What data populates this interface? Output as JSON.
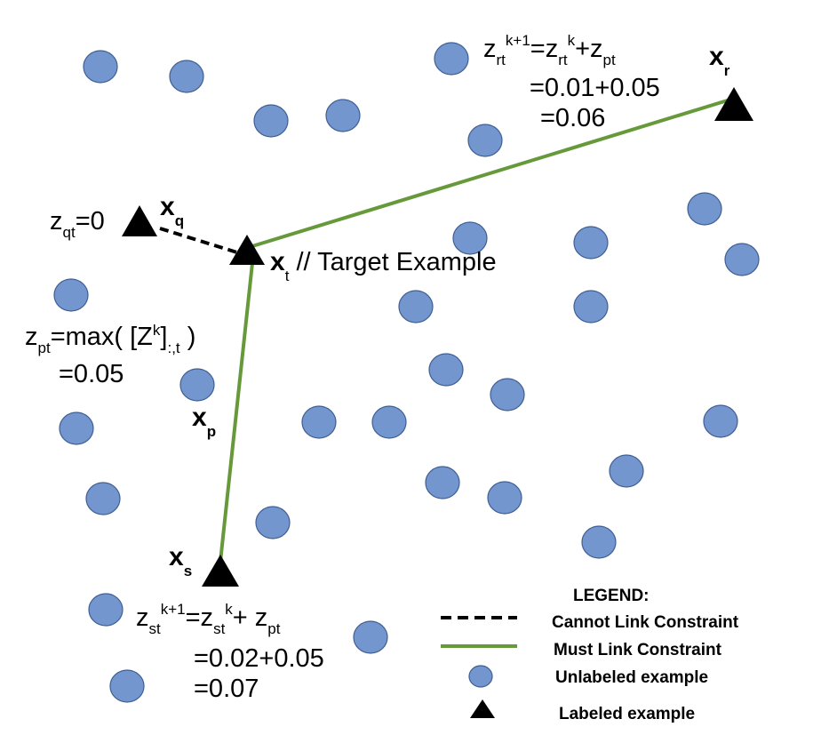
{
  "nodes": {
    "x_t": {
      "symbol": "x",
      "sub": "t",
      "suffix": " // Target Example"
    },
    "x_q": {
      "symbol": "x",
      "sub": "q"
    },
    "x_r": {
      "symbol": "x",
      "sub": "r"
    },
    "x_s": {
      "symbol": "x",
      "sub": "s"
    },
    "x_p": {
      "symbol": "x",
      "sub": "p"
    }
  },
  "equations": {
    "zqt": {
      "base": "z",
      "sub": "qt",
      "rest": "=0"
    },
    "zpt": {
      "line1": {
        "base": "z",
        "sub": "pt",
        "mid": "=max( [Z",
        "sup": "k",
        "close": "]",
        "sub2": ":,t",
        "end": " )"
      },
      "line2": "=0.05"
    },
    "zrt": {
      "line1": {
        "a": "z",
        "a_sub": "rt",
        "a_sup": "k+1",
        "eq": "=z",
        "b_sub": "rt",
        "b_sup": "k",
        "plus": "+z",
        "c_sub": "pt"
      },
      "line2": "=0.01+0.05",
      "line3": "=0.06"
    },
    "zst": {
      "line1": {
        "a": "z",
        "a_sub": "st",
        "a_sup": "k+1",
        "eq": "=z",
        "b_sub": "st",
        "b_sup": "k",
        "plus": "+ z",
        "c_sub": "pt"
      },
      "line2": "=0.02+0.05",
      "line3": "=0.07"
    }
  },
  "legend": {
    "title": "LEGEND:",
    "cannot_link": "Cannot Link Constraint",
    "must_link": "Must Link Constraint",
    "unlabeled": "Unlabeled example",
    "labeled": "Labeled example"
  },
  "colors": {
    "unlabeled_fill": "#7396cf",
    "unlabeled_stroke": "#3f5f93",
    "must_link": "#66993a",
    "cannot_link": "#000000",
    "labeled_fill": "#000000"
  }
}
